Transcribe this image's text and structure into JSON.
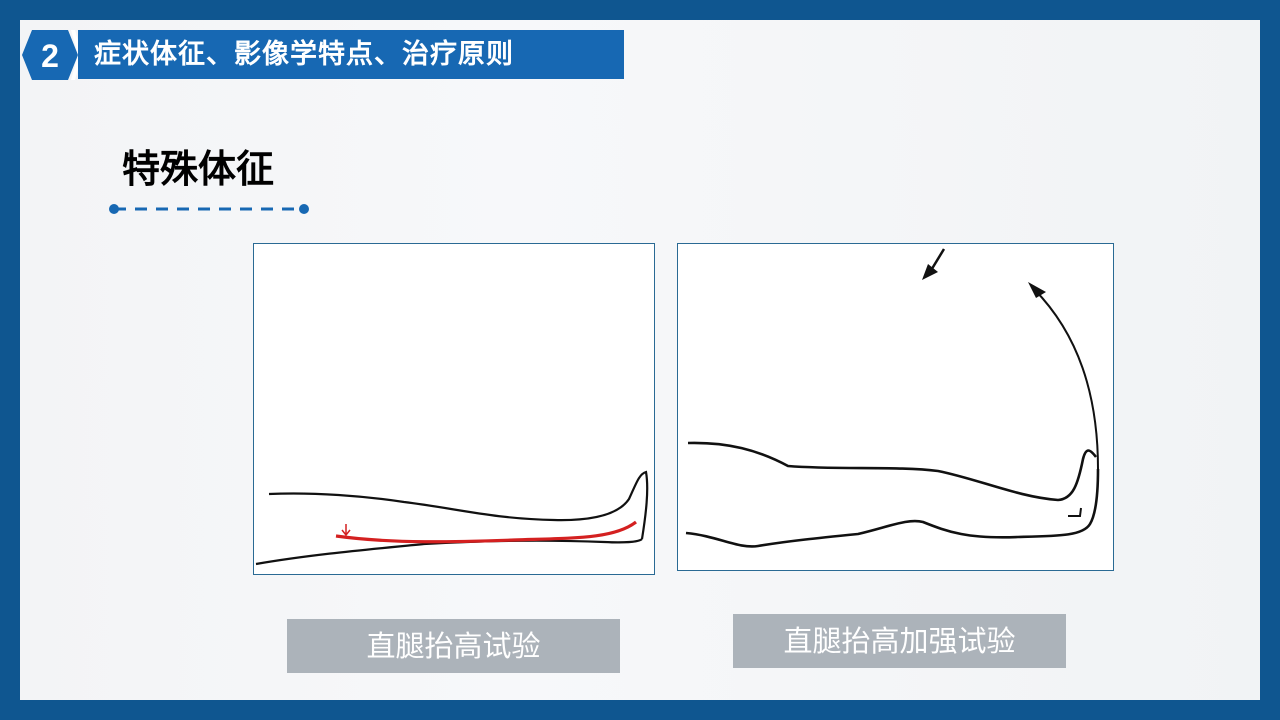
{
  "header": {
    "section_number": "2",
    "title": "症状体征、影像学特点、治疗原则"
  },
  "section_title": "特殊体征",
  "figures": [
    {
      "caption": "直腿抬高试验"
    },
    {
      "caption": "直腿抬高加强试验"
    }
  ],
  "colors": {
    "border": "#0f5690",
    "accent": "#1768b3",
    "caption_bg": "#acb3ba",
    "pain_line": "#d42020"
  }
}
